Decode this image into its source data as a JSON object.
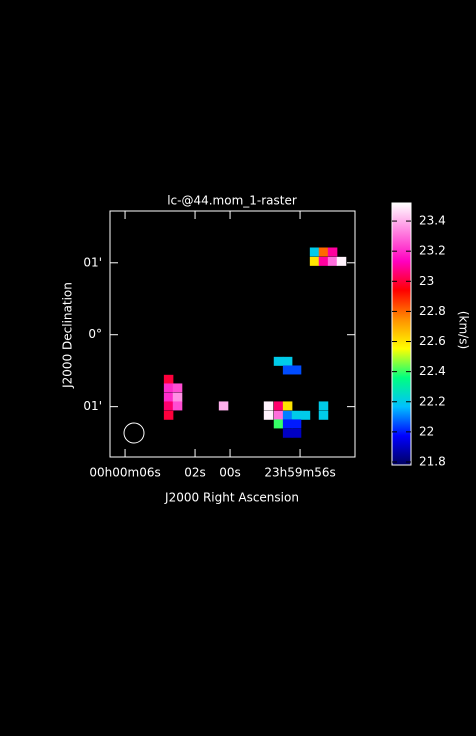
{
  "chart_data": {
    "type": "heatmap",
    "title": "lc-@44.mom_1-raster",
    "xlabel": "J2000 Right Ascension",
    "ylabel": "J2000 Declination",
    "xlim": [
      6.86,
      -7.14
    ],
    "ylim": [
      -1.7,
      1.72
    ],
    "xticks": [
      {
        "value": 6,
        "label": "00h00m06s"
      },
      {
        "value": 2,
        "label": "02s"
      },
      {
        "value": 0,
        "label": "00s"
      },
      {
        "value": -4,
        "label": "23h59m56s"
      }
    ],
    "yticks": [
      {
        "value": 1,
        "label": "01'"
      },
      {
        "value": 0,
        "label": "0°"
      },
      {
        "value": -1,
        "label": "01'"
      }
    ],
    "x": [
      3.51,
      3.51,
      3.51,
      3.51,
      3.51,
      3.0,
      3.0,
      3.0,
      0.37,
      -4.83,
      -5.34,
      -5.86,
      -4.83,
      -5.34,
      -5.86,
      -6.37,
      -2.77,
      -3.29,
      -3.29,
      -3.8,
      -2.2,
      -2.77,
      -3.29,
      -2.2,
      -2.77,
      -3.29,
      -3.8,
      -4.31,
      -2.77,
      -3.29,
      -3.8,
      -3.29,
      -3.8,
      -5.34,
      -5.34
    ],
    "y": [
      -0.62,
      -0.74,
      -0.87,
      -0.99,
      -1.12,
      -0.74,
      -0.87,
      -0.99,
      -0.99,
      1.15,
      1.15,
      1.15,
      1.02,
      1.02,
      1.02,
      1.02,
      -0.37,
      -0.37,
      -0.49,
      -0.49,
      -0.99,
      -0.99,
      -0.99,
      -1.12,
      -1.12,
      -1.12,
      -1.12,
      -1.12,
      -1.24,
      -1.24,
      -1.24,
      -1.37,
      -1.37,
      -0.99,
      -1.12
    ],
    "values": [
      23.0,
      23.2,
      23.2,
      23.05,
      23.0,
      23.25,
      23.35,
      23.25,
      23.4,
      22.2,
      22.8,
      23.1,
      22.6,
      23.1,
      23.3,
      23.5,
      22.2,
      22.2,
      22.05,
      22.05,
      23.5,
      23.05,
      22.6,
      23.5,
      23.3,
      22.1,
      22.2,
      22.2,
      22.4,
      22.0,
      22.0,
      21.9,
      21.9,
      22.2,
      22.2
    ],
    "colorbar": {
      "label": "(km/s)",
      "lim": [
        21.78,
        23.52
      ],
      "ticks": [
        21.8,
        22,
        22.2,
        22.4,
        22.6,
        22.8,
        23,
        23.2,
        23.4
      ],
      "colors": [
        "#000060",
        "#0000ff",
        "#00c0ff",
        "#00ff80",
        "#ffff00",
        "#ff9000",
        "#ff0000",
        "#ff00c0",
        "#ff80e0",
        "#ffffff"
      ]
    }
  }
}
